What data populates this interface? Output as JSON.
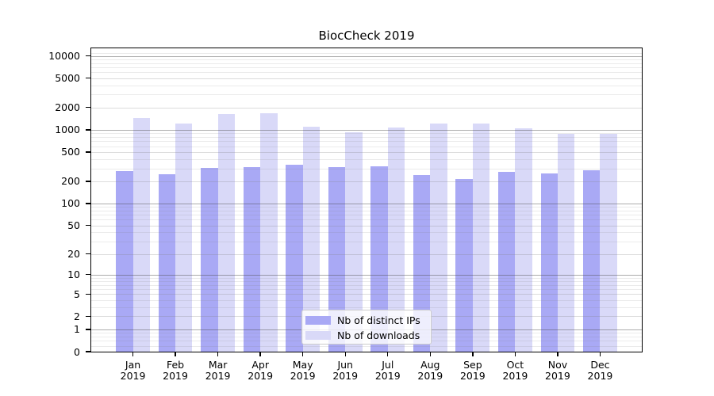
{
  "chart_data": {
    "type": "bar",
    "title": "BiocCheck 2019",
    "months": [
      "Jan",
      "Feb",
      "Mar",
      "Apr",
      "May",
      "Jun",
      "Jul",
      "Aug",
      "Sep",
      "Oct",
      "Nov",
      "Dec"
    ],
    "year": "2019",
    "categories": [
      "Jan 2019",
      "Feb 2019",
      "Mar 2019",
      "Apr 2019",
      "May 2019",
      "Jun 2019",
      "Jul 2019",
      "Aug 2019",
      "Sep 2019",
      "Oct 2019",
      "Nov 2019",
      "Dec 2019"
    ],
    "series": [
      {
        "name": "Nb of distinct IPs",
        "color": "#a9a9f5",
        "values": [
          275,
          250,
          305,
          312,
          335,
          315,
          320,
          245,
          215,
          272,
          255,
          285
        ]
      },
      {
        "name": "Nb of downloads",
        "color": "#d9d9f8",
        "values": [
          1430,
          1210,
          1640,
          1670,
          1110,
          920,
          1085,
          1210,
          1200,
          1040,
          890,
          870
        ]
      }
    ],
    "y_scale": "log1p",
    "y_ticks": [
      0,
      1,
      2,
      5,
      10,
      20,
      50,
      100,
      200,
      500,
      1000,
      2000,
      5000,
      10000
    ],
    "ylim": [
      0,
      12200
    ],
    "xlabel": "",
    "ylabel": "",
    "grid": true,
    "legend_position": "lower-center-inside"
  },
  "legend": {
    "items": [
      {
        "label": "Nb of distinct IPs"
      },
      {
        "label": "Nb of downloads"
      }
    ]
  }
}
